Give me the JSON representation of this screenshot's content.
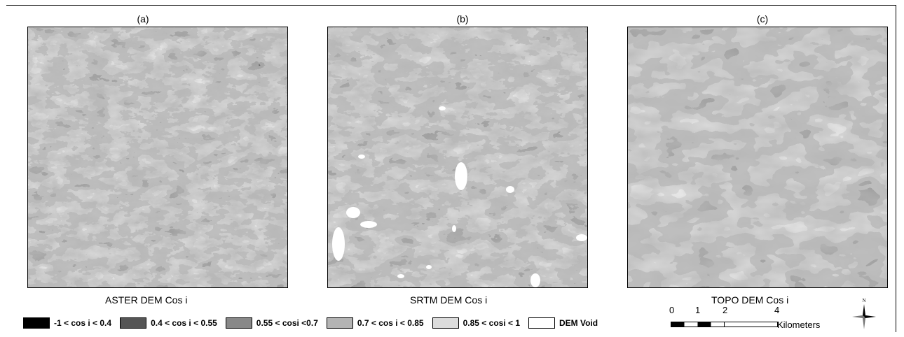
{
  "panels": [
    {
      "label": "(a)",
      "caption": "ASTER  DEM Cos i",
      "voids": false
    },
    {
      "label": "(b)",
      "caption": "SRTM  DEM Cos i",
      "voids": true
    },
    {
      "label": "(c)",
      "caption": "TOPO  DEM Cos i",
      "voids": false
    }
  ],
  "legend": [
    {
      "label": "-1 < cos i < 0.4",
      "color": "#000000"
    },
    {
      "label": "0.4 < cos i < 0.55",
      "color": "#555555"
    },
    {
      "label": "0.55 < cosi <0.7",
      "color": "#888888"
    },
    {
      "label": "0.7 < cos i < 0.85",
      "color": "#b4b4b4"
    },
    {
      "label": "0.85 < cosi < 1",
      "color": "#dcdcdc"
    },
    {
      "label": "DEM Void",
      "color": "#ffffff"
    }
  ],
  "scalebar": {
    "ticks": [
      "0",
      "1",
      "2",
      "4"
    ],
    "unit": "Kilometers"
  },
  "north": {
    "label": "N"
  }
}
